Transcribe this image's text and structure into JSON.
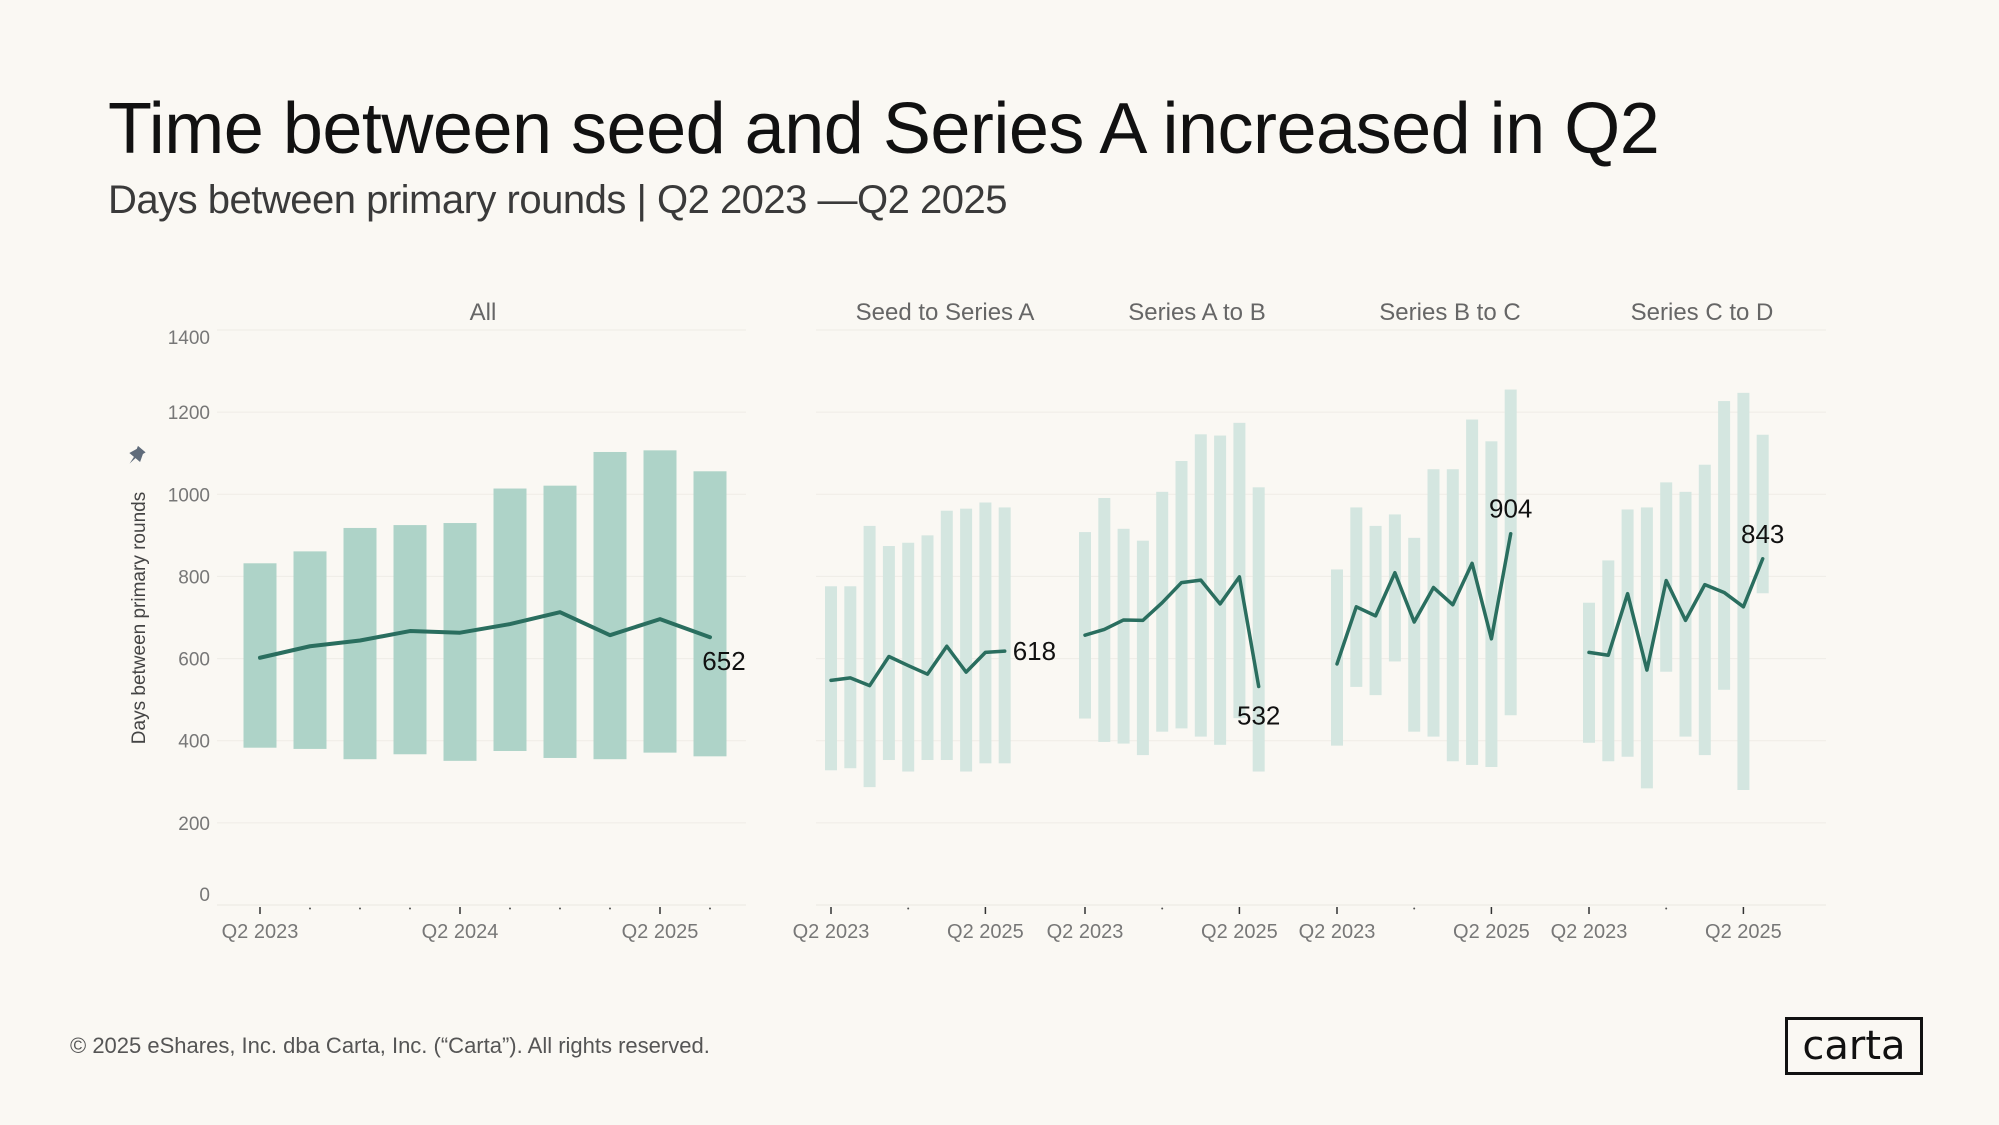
{
  "header": {
    "title": "Time between seed and Series A increased in Q2",
    "subtitle": "Days between primary rounds |  Q2 2023 —Q2 2025"
  },
  "footer": {
    "copyright": "© 2025 eShares, Inc. dba Carta, Inc. (“Carta”). All rights reserved.",
    "logo_text": "carta"
  },
  "icons": {
    "y_axis_pin": "pin-icon"
  },
  "colors": {
    "background": "#faf8f3",
    "main_bar": "#aed3c8",
    "facet_bar": "#d4e6e0",
    "line": "#2a6e5f"
  },
  "chart_data": [
    {
      "type": "bar+line",
      "facet": "All",
      "ylabel": "Days between primary rounds",
      "ylim": [
        0,
        1400
      ],
      "yticks": [
        0,
        200,
        400,
        600,
        800,
        1000,
        1200,
        1400
      ],
      "grid": true,
      "categories": [
        "Q2 2023",
        "Q3 2023",
        "Q4 2023",
        "Q1 2024",
        "Q2 2024",
        "Q3 2024",
        "Q4 2024",
        "Q1 2025",
        "Q2 2025",
        "Q3 2025"
      ],
      "tick_labels": [
        "Q2 2023",
        "Q2 2024",
        "Q2 2025"
      ],
      "range_high": [
        832,
        861,
        918,
        925,
        930,
        1014,
        1021,
        1103,
        1107,
        1056
      ],
      "range_low": [
        383,
        380,
        355,
        367,
        351,
        375,
        358,
        355,
        371,
        362
      ],
      "line": [
        602,
        630,
        644,
        667,
        663,
        684,
        713,
        657,
        696,
        652
      ],
      "end_label": "652"
    },
    {
      "type": "bar+line",
      "facet": "Seed to Series A",
      "ylim": [
        0,
        1400
      ],
      "categories": [
        "Q2 2023",
        "Q3 2023",
        "Q4 2023",
        "Q1 2024",
        "Q2 2024",
        "Q3 2024",
        "Q4 2024",
        "Q1 2025",
        "Q2 2025",
        "Q3 2025"
      ],
      "tick_labels": [
        "Q2 2023",
        "Q2 2025"
      ],
      "range_high": [
        776,
        776,
        923,
        874,
        882,
        900,
        960,
        965,
        980,
        968
      ],
      "range_low": [
        328,
        333,
        287,
        353,
        325,
        353,
        353,
        325,
        345,
        345
      ],
      "line": [
        547,
        553,
        534,
        605,
        583,
        562,
        630,
        567,
        615,
        618
      ],
      "end_label": "618"
    },
    {
      "type": "bar+line",
      "facet": "Series A to B",
      "ylim": [
        0,
        1400
      ],
      "categories": [
        "Q2 2023",
        "Q3 2023",
        "Q4 2023",
        "Q1 2024",
        "Q2 2024",
        "Q3 2024",
        "Q4 2024",
        "Q1 2025",
        "Q2 2025",
        "Q3 2025"
      ],
      "tick_labels": [
        "Q2 2023",
        "Q2 2025"
      ],
      "range_high": [
        908,
        991,
        916,
        887,
        1006,
        1081,
        1146,
        1143,
        1174,
        1017
      ],
      "range_low": [
        454,
        397,
        393,
        365,
        422,
        430,
        410,
        390,
        455,
        325
      ],
      "line": [
        657,
        671,
        694,
        693,
        736,
        785,
        791,
        733,
        799,
        532
      ],
      "end_label": "532"
    },
    {
      "type": "bar+line",
      "facet": "Series B to C",
      "ylim": [
        0,
        1400
      ],
      "categories": [
        "Q2 2023",
        "Q3 2023",
        "Q4 2023",
        "Q1 2024",
        "Q2 2024",
        "Q3 2024",
        "Q4 2024",
        "Q1 2025",
        "Q2 2025",
        "Q3 2025"
      ],
      "tick_labels": [
        "Q2 2023",
        "Q2 2025"
      ],
      "range_high": [
        817,
        968,
        923,
        951,
        894,
        1061,
        1061,
        1182,
        1129,
        1255
      ],
      "range_low": [
        388,
        531,
        511,
        593,
        422,
        410,
        350,
        341,
        336,
        462
      ],
      "line": [
        587,
        726,
        704,
        809,
        689,
        773,
        731,
        832,
        648,
        904
      ],
      "end_label": "904"
    },
    {
      "type": "bar+line",
      "facet": "Series C to D",
      "ylim": [
        0,
        1400
      ],
      "categories": [
        "Q2 2023",
        "Q3 2023",
        "Q4 2023",
        "Q1 2024",
        "Q2 2024",
        "Q3 2024",
        "Q4 2024",
        "Q1 2025",
        "Q2 2025",
        "Q3 2025"
      ],
      "tick_labels": [
        "Q2 2023",
        "Q2 2025"
      ],
      "range_high": [
        736,
        839,
        963,
        968,
        1029,
        1006,
        1072,
        1227,
        1247,
        1145
      ],
      "range_low": [
        395,
        350,
        361,
        284,
        568,
        410,
        365,
        524,
        280,
        759
      ],
      "line": [
        615,
        608,
        758,
        572,
        790,
        693,
        780,
        761,
        726,
        843
      ],
      "end_label": "843"
    }
  ]
}
